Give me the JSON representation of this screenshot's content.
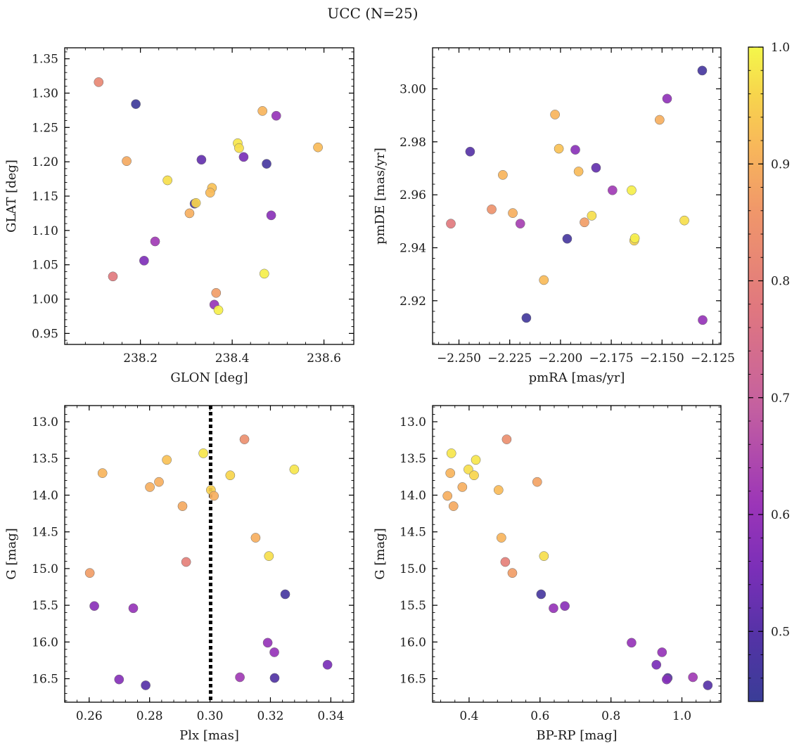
{
  "figure": {
    "title": "UCC (N=25)"
  },
  "colorbar": {
    "colormap": "plasma",
    "range": [
      0.44,
      1.0
    ],
    "ticks": [
      "0.5",
      "0.6",
      "0.7",
      "0.8",
      "0.9",
      "1.0"
    ],
    "tick_values": [
      0.5,
      0.6,
      0.7,
      0.8,
      0.9,
      1.0
    ]
  },
  "chart_data": [
    {
      "type": "scatter",
      "id": "glon-glat",
      "xlabel": "GLON [deg]",
      "ylabel": "GLAT [deg]",
      "xlim": [
        238.035,
        238.665
      ],
      "ylim": [
        0.934,
        1.366
      ],
      "y_inverted": false,
      "xticks": [
        238.2,
        238.4,
        238.6
      ],
      "xtick_labels": [
        "238.2",
        "238.4",
        "238.6"
      ],
      "yticks": [
        0.95,
        1.0,
        1.05,
        1.1,
        1.15,
        1.2,
        1.25,
        1.3,
        1.35
      ],
      "ytick_labels": [
        "0.95",
        "1.00",
        "1.05",
        "1.10",
        "1.15",
        "1.20",
        "1.25",
        "1.30",
        "1.35"
      ],
      "x": [
        238.109,
        238.19,
        238.496,
        238.466,
        238.587,
        238.412,
        238.415,
        238.17,
        238.333,
        238.425,
        238.475,
        238.259,
        238.356,
        238.352,
        238.318,
        238.321,
        238.307,
        238.485,
        238.232,
        238.208,
        238.47,
        238.14,
        238.365,
        238.361,
        238.37
      ],
      "y": [
        1.316,
        1.284,
        1.267,
        1.274,
        1.221,
        1.227,
        1.22,
        1.201,
        1.203,
        1.207,
        1.197,
        1.173,
        1.162,
        1.155,
        1.139,
        1.14,
        1.125,
        1.122,
        1.084,
        1.056,
        1.037,
        1.033,
        1.009,
        0.992,
        0.984
      ],
      "c": [
        0.82,
        0.45,
        0.6,
        0.91,
        0.92,
        0.98,
        0.97,
        0.89,
        0.52,
        0.55,
        0.47,
        0.97,
        0.93,
        0.92,
        0.47,
        0.96,
        0.9,
        0.58,
        0.62,
        0.56,
        0.99,
        0.78,
        0.87,
        0.6,
        0.99
      ]
    },
    {
      "type": "scatter",
      "id": "pm",
      "xlabel": "pmRA [mas/yr]",
      "ylabel": "pmDE [mas/yr]",
      "xlim": [
        -2.263,
        -2.121
      ],
      "ylim": [
        2.9035,
        3.0155
      ],
      "y_inverted": false,
      "xticks": [
        -2.25,
        -2.225,
        -2.2,
        -2.175,
        -2.15,
        -2.125
      ],
      "xtick_labels": [
        "−2.250",
        "−2.225",
        "−2.200",
        "−2.175",
        "−2.150",
        "−2.125"
      ],
      "yticks": [
        2.92,
        2.94,
        2.96,
        2.98,
        3.0
      ],
      "ytick_labels": [
        "2.92",
        "2.94",
        "2.96",
        "2.98",
        "3.00"
      ],
      "x": [
        -2.1302,
        -2.1475,
        -2.1512,
        -2.2027,
        -2.2008,
        -2.2445,
        -2.1927,
        -2.1911,
        -2.1825,
        -2.2284,
        -2.1744,
        -2.165,
        -2.2339,
        -2.2235,
        -2.1882,
        -2.139,
        -2.254,
        -2.2198,
        -2.1846,
        -2.1967,
        -2.1637,
        -2.1634,
        -2.2082,
        -2.2168,
        -2.13
      ],
      "y": [
        3.0069,
        2.9963,
        2.9883,
        2.9903,
        2.9774,
        2.9763,
        2.977,
        2.9688,
        2.9702,
        2.9675,
        2.9617,
        2.9617,
        2.9545,
        2.9531,
        2.9496,
        2.9503,
        2.9491,
        2.9491,
        2.9521,
        2.9434,
        2.9427,
        2.9436,
        2.9278,
        2.9135,
        2.9127
      ],
      "c": [
        0.47,
        0.59,
        0.9,
        0.91,
        0.93,
        0.5,
        0.58,
        0.92,
        0.52,
        0.91,
        0.62,
        0.99,
        0.85,
        0.9,
        0.87,
        0.97,
        0.78,
        0.63,
        0.97,
        0.47,
        0.96,
        0.99,
        0.92,
        0.46,
        0.6
      ]
    },
    {
      "type": "scatter",
      "id": "plx-g",
      "xlabel": "Plx [mas]",
      "ylabel": "G [mag]",
      "xlim": [
        0.2519,
        0.3476
      ],
      "ylim": [
        16.82,
        12.78
      ],
      "y_inverted": true,
      "xticks": [
        0.26,
        0.28,
        0.3,
        0.32,
        0.34
      ],
      "xtick_labels": [
        "0.26",
        "0.28",
        "0.30",
        "0.32",
        "0.34"
      ],
      "yticks": [
        13.0,
        13.5,
        14.0,
        14.5,
        15.0,
        15.5,
        16.0,
        16.5
      ],
      "ytick_labels": [
        "13.0",
        "13.5",
        "14.0",
        "14.5",
        "15.0",
        "15.5",
        "16.0",
        "16.5"
      ],
      "vline": 0.3002,
      "x": [
        0.3114,
        0.2978,
        0.2857,
        0.3279,
        0.2644,
        0.3067,
        0.2831,
        0.2801,
        0.3003,
        0.3013,
        0.2909,
        0.3151,
        0.3195,
        0.2921,
        0.2602,
        0.3249,
        0.2617,
        0.2746,
        0.3191,
        0.3213,
        0.3389,
        0.3099,
        0.3214,
        0.2699,
        0.2787
      ],
      "y": [
        13.24,
        13.43,
        13.52,
        13.65,
        13.7,
        13.73,
        13.82,
        13.89,
        13.93,
        14.01,
        14.15,
        14.58,
        14.83,
        14.91,
        15.06,
        15.35,
        15.51,
        15.54,
        16.01,
        16.14,
        16.31,
        16.48,
        16.49,
        16.51,
        16.59
      ],
      "c": [
        0.84,
        0.98,
        0.93,
        0.98,
        0.91,
        0.96,
        0.9,
        0.9,
        0.95,
        0.9,
        0.89,
        0.9,
        0.97,
        0.8,
        0.87,
        0.47,
        0.58,
        0.6,
        0.6,
        0.6,
        0.55,
        0.62,
        0.49,
        0.57,
        0.5
      ]
    },
    {
      "type": "scatter",
      "id": "cmd",
      "xlabel": "BP-RP [mag]",
      "ylabel": "G [mag]",
      "xlim": [
        0.297,
        1.11
      ],
      "ylim": [
        16.82,
        12.78
      ],
      "y_inverted": true,
      "xticks": [
        0.4,
        0.6,
        0.8,
        1.0
      ],
      "xtick_labels": [
        "0.4",
        "0.6",
        "0.8",
        "1.0"
      ],
      "yticks": [
        13.0,
        13.5,
        14.0,
        14.5,
        15.0,
        15.5,
        16.0,
        16.5
      ],
      "ytick_labels": [
        "13.0",
        "13.5",
        "14.0",
        "14.5",
        "15.0",
        "15.5",
        "16.0",
        "16.5"
      ],
      "x": [
        0.506,
        0.35,
        0.419,
        0.398,
        0.347,
        0.414,
        0.592,
        0.381,
        0.483,
        0.339,
        0.356,
        0.491,
        0.611,
        0.502,
        0.522,
        0.603,
        0.67,
        0.638,
        0.858,
        0.944,
        0.928,
        1.031,
        0.96,
        0.957,
        1.073
      ],
      "y": [
        13.24,
        13.43,
        13.52,
        13.65,
        13.7,
        13.73,
        13.82,
        13.89,
        13.93,
        14.01,
        14.15,
        14.58,
        14.83,
        14.91,
        15.06,
        15.35,
        15.51,
        15.54,
        16.01,
        16.14,
        16.31,
        16.48,
        16.49,
        16.51,
        16.59
      ],
      "c": [
        0.84,
        0.98,
        0.98,
        0.97,
        0.91,
        0.96,
        0.88,
        0.9,
        0.92,
        0.9,
        0.89,
        0.91,
        0.97,
        0.8,
        0.87,
        0.47,
        0.58,
        0.6,
        0.6,
        0.6,
        0.55,
        0.62,
        0.49,
        0.57,
        0.5
      ]
    }
  ]
}
